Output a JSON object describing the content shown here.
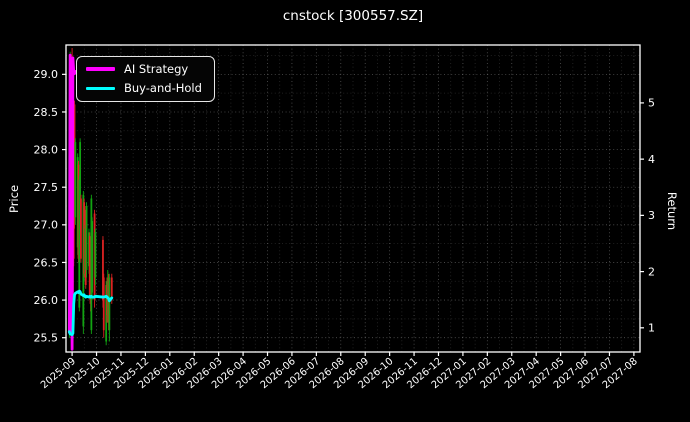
{
  "title": "cnstock [300557.SZ]",
  "colors": {
    "background": "#000000",
    "text": "#ffffff",
    "spine": "#ffffff",
    "grid_major": "rgba(255,255,255,0.32)",
    "grid_minor": "rgba(255,255,255,0.16)",
    "candle_up": "#12a412",
    "candle_down": "#dd2222",
    "ai_strategy": "#ff00ff",
    "buy_and_hold": "#00ffff"
  },
  "legend": {
    "items": [
      {
        "label": "AI Strategy",
        "color": "#ff00ff"
      },
      {
        "label": "Buy-and-Hold",
        "color": "#00ffff"
      }
    ]
  },
  "chart_data": {
    "type": "candlestick",
    "title": "cnstock [300557.SZ]",
    "grid": true,
    "legend_position": "upper-left",
    "left_axis": {
      "label": "Price",
      "ticks": [
        25.5,
        26.0,
        26.5,
        27.0,
        27.5,
        28.0,
        28.5,
        29.0
      ],
      "ylim": [
        25.31,
        29.39
      ],
      "minor_step": 0.25
    },
    "right_axis": {
      "label": "Return",
      "ticks": [
        1,
        2,
        3,
        4,
        5
      ],
      "ylim": [
        0.57,
        6.03
      ]
    },
    "x_axis": {
      "tick_labels": [
        "2025-09",
        "2025-10",
        "2025-11",
        "2025-12",
        "2026-01",
        "2026-02",
        "2026-03",
        "2026-04",
        "2026-05",
        "2026-06",
        "2026-07",
        "2026-08",
        "2026-09",
        "2026-10",
        "2026-11",
        "2026-12",
        "2027-01",
        "2027-02",
        "2027-03",
        "2027-04",
        "2027-05",
        "2027-06",
        "2027-07",
        "2027-08"
      ],
      "xlim_months": [
        -0.25,
        23.25
      ],
      "start_month": "2025-09",
      "label_rotation_deg": 40
    },
    "candles": [
      {
        "date": "2025-08-28",
        "o": 25.62,
        "h": 27.98,
        "l": 25.5,
        "c": 27.92
      },
      {
        "date": "2025-08-29",
        "o": 27.92,
        "h": 29.3,
        "l": 27.45,
        "c": 29.1
      },
      {
        "date": "2025-09-01",
        "o": 29.1,
        "h": 29.35,
        "l": 28.0,
        "c": 28.25
      },
      {
        "date": "2025-09-02",
        "o": 28.25,
        "h": 28.9,
        "l": 26.0,
        "c": 26.1
      },
      {
        "date": "2025-09-03",
        "o": 28.3,
        "h": 28.4,
        "l": 26.45,
        "c": 26.55
      },
      {
        "date": "2025-09-04",
        "o": 28.6,
        "h": 28.65,
        "l": 26.95,
        "c": 27.05
      },
      {
        "date": "2025-09-05",
        "o": 27.1,
        "h": 28.15,
        "l": 27.0,
        "c": 28.1
      },
      {
        "date": "2025-09-08",
        "o": 26.7,
        "h": 27.95,
        "l": 26.6,
        "c": 27.9
      },
      {
        "date": "2025-09-09",
        "o": 27.8,
        "h": 27.85,
        "l": 26.5,
        "c": 26.55
      },
      {
        "date": "2025-09-10",
        "o": 25.9,
        "h": 27.65,
        "l": 25.85,
        "c": 27.6
      },
      {
        "date": "2025-09-11",
        "o": 27.0,
        "h": 28.15,
        "l": 26.9,
        "c": 28.1
      },
      {
        "date": "2025-09-12",
        "o": 27.35,
        "h": 27.4,
        "l": 26.5,
        "c": 26.55
      },
      {
        "date": "2025-09-15",
        "o": 25.65,
        "h": 27.45,
        "l": 25.55,
        "c": 27.4
      },
      {
        "date": "2025-09-16",
        "o": 27.3,
        "h": 27.35,
        "l": 26.3,
        "c": 26.35
      },
      {
        "date": "2025-09-17",
        "o": 26.35,
        "h": 27.0,
        "l": 26.25,
        "c": 26.95
      },
      {
        "date": "2025-09-18",
        "o": 27.2,
        "h": 27.25,
        "l": 26.15,
        "c": 26.2
      },
      {
        "date": "2025-09-19",
        "o": 26.4,
        "h": 27.3,
        "l": 26.3,
        "c": 27.25
      },
      {
        "date": "2025-09-22",
        "o": 26.45,
        "h": 26.95,
        "l": 26.35,
        "c": 26.9
      },
      {
        "date": "2025-09-23",
        "o": 26.85,
        "h": 26.9,
        "l": 26.0,
        "c": 26.05
      },
      {
        "date": "2025-09-24",
        "o": 26.55,
        "h": 26.6,
        "l": 25.85,
        "c": 25.95
      },
      {
        "date": "2025-09-25",
        "o": 25.6,
        "h": 27.4,
        "l": 25.55,
        "c": 27.35
      },
      {
        "date": "2025-09-26",
        "o": 26.1,
        "h": 27.1,
        "l": 26.0,
        "c": 27.05
      },
      {
        "date": "2025-09-29",
        "o": 27.15,
        "h": 27.2,
        "l": 25.9,
        "c": 26.0
      },
      {
        "date": "2025-09-30",
        "o": 26.3,
        "h": 26.95,
        "l": 26.2,
        "c": 26.9
      },
      {
        "date": "2025-10-09",
        "o": 26.8,
        "h": 26.85,
        "l": 25.9,
        "c": 26.0
      },
      {
        "date": "2025-10-10",
        "o": 26.3,
        "h": 26.35,
        "l": 25.5,
        "c": 25.6
      },
      {
        "date": "2025-10-13",
        "o": 25.45,
        "h": 26.25,
        "l": 25.4,
        "c": 26.2
      },
      {
        "date": "2025-10-14",
        "o": 26.2,
        "h": 26.3,
        "l": 25.7,
        "c": 25.8
      },
      {
        "date": "2025-10-15",
        "o": 25.8,
        "h": 26.4,
        "l": 25.7,
        "c": 26.3
      },
      {
        "date": "2025-10-16",
        "o": 26.3,
        "h": 26.35,
        "l": 25.6,
        "c": 25.7
      },
      {
        "date": "2025-10-17",
        "o": 25.6,
        "h": 26.35,
        "l": 25.45,
        "c": 26.3
      },
      {
        "date": "2025-10-20",
        "o": 26.3,
        "h": 26.35,
        "l": 25.95,
        "c": 26.05
      }
    ],
    "series": [
      {
        "name": "AI Strategy",
        "axis": "right",
        "color": "#ff00ff",
        "points": [
          [
            "2025-08-28",
            0.92
          ],
          [
            "2025-08-29",
            5.85
          ],
          [
            "2025-09-01",
            0.62
          ],
          [
            "2025-09-02",
            5.8
          ],
          [
            "2025-09-03",
            5.55
          ],
          [
            "2025-09-04",
            5.52
          ],
          [
            "2025-09-05",
            5.56
          ],
          [
            "2025-09-08",
            5.54
          ],
          [
            "2025-09-09",
            5.55
          ],
          [
            "2025-09-10",
            5.57
          ],
          [
            "2025-09-11",
            5.55
          ],
          [
            "2025-09-12",
            5.54
          ],
          [
            "2025-09-15",
            5.55
          ],
          [
            "2025-09-16",
            5.53
          ],
          [
            "2025-09-17",
            5.54
          ],
          [
            "2025-09-18",
            5.55
          ],
          [
            "2025-09-19",
            5.54
          ],
          [
            "2025-09-22",
            5.55
          ],
          [
            "2025-09-23",
            5.54
          ],
          [
            "2025-09-24",
            5.55
          ],
          [
            "2025-09-25",
            5.54
          ],
          [
            "2025-09-26",
            5.55
          ],
          [
            "2025-09-29",
            5.54
          ],
          [
            "2025-09-30",
            5.55
          ],
          [
            "2025-10-09",
            5.54
          ],
          [
            "2025-10-10",
            5.55
          ],
          [
            "2025-10-13",
            5.54
          ],
          [
            "2025-10-14",
            5.55
          ],
          [
            "2025-10-15",
            5.54
          ],
          [
            "2025-10-16",
            5.55
          ],
          [
            "2025-10-17",
            5.54
          ],
          [
            "2025-10-20",
            5.55
          ]
        ]
      },
      {
        "name": "Buy-and-Hold",
        "axis": "left",
        "color": "#00ffff",
        "points": [
          [
            "2025-08-28",
            25.58
          ],
          [
            "2025-08-29",
            25.55
          ],
          [
            "2025-09-01",
            25.54
          ],
          [
            "2025-09-02",
            25.56
          ],
          [
            "2025-09-03",
            25.95
          ],
          [
            "2025-09-04",
            26.07
          ],
          [
            "2025-09-05",
            26.09
          ],
          [
            "2025-09-08",
            26.11
          ],
          [
            "2025-09-09",
            26.1
          ],
          [
            "2025-09-10",
            26.12
          ],
          [
            "2025-09-11",
            26.11
          ],
          [
            "2025-09-12",
            26.08
          ],
          [
            "2025-09-15",
            26.06
          ],
          [
            "2025-09-16",
            26.07
          ],
          [
            "2025-09-17",
            26.05
          ],
          [
            "2025-09-18",
            26.04
          ],
          [
            "2025-09-19",
            26.05
          ],
          [
            "2025-09-22",
            26.04
          ],
          [
            "2025-09-23",
            26.05
          ],
          [
            "2025-09-24",
            26.04
          ],
          [
            "2025-09-25",
            26.05
          ],
          [
            "2025-09-26",
            26.04
          ],
          [
            "2025-09-29",
            26.04
          ],
          [
            "2025-09-30",
            26.05
          ],
          [
            "2025-10-09",
            26.04
          ],
          [
            "2025-10-10",
            26.04
          ],
          [
            "2025-10-13",
            26.05
          ],
          [
            "2025-10-14",
            26.04
          ],
          [
            "2025-10-15",
            26.03
          ],
          [
            "2025-10-16",
            26.02
          ],
          [
            "2025-10-17",
            25.99
          ],
          [
            "2025-10-20",
            26.03
          ]
        ]
      }
    ]
  }
}
